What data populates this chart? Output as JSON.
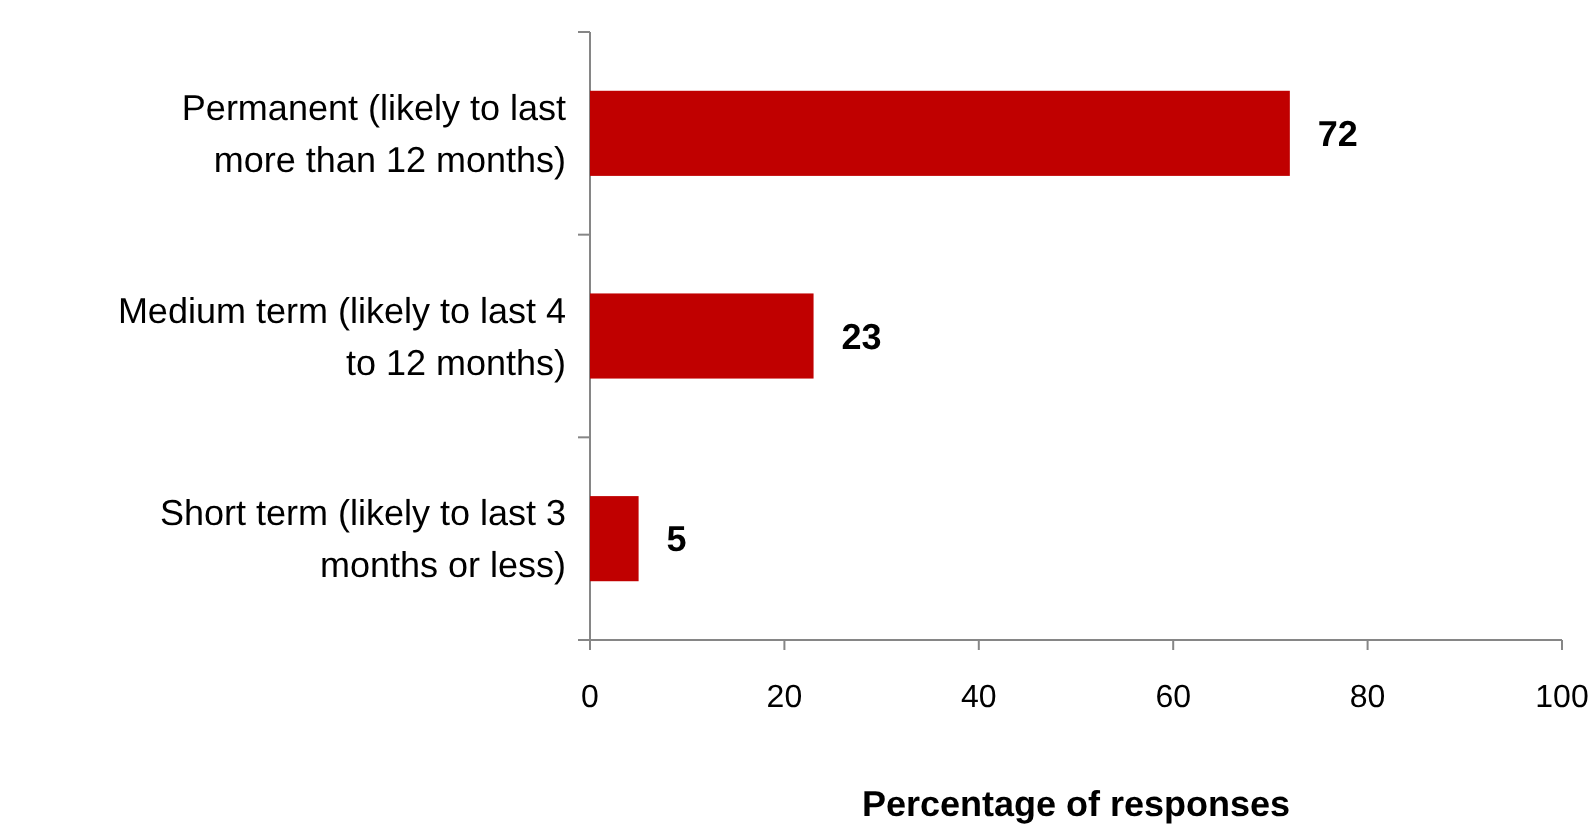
{
  "chart_data": {
    "type": "bar",
    "orientation": "horizontal",
    "xlabel": "Percentage of responses",
    "categories": [
      "Permanent (likely to last more than 12 months)",
      "Medium term (likely to last 4 to 12 months)",
      "Short term (likely to last 3 months or less)"
    ],
    "values": [
      72,
      23,
      5
    ],
    "color": "#c00000",
    "data_labels": true,
    "xlim": [
      0,
      100
    ],
    "xticks": [
      0,
      20,
      40,
      60,
      80,
      100
    ]
  }
}
